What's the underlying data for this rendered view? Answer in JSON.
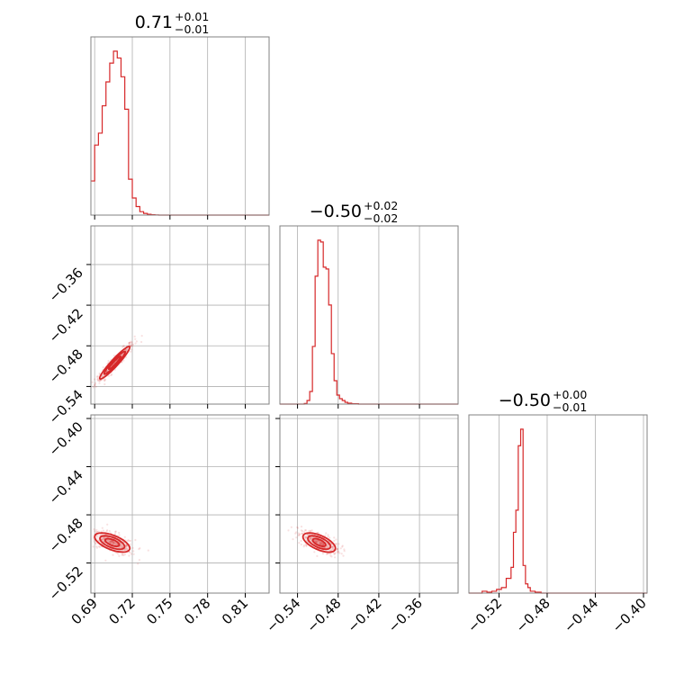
{
  "chart_data": {
    "type": "corner",
    "color": "#d62728",
    "grid": true,
    "diagonal_titles": [
      {
        "value": "0.71",
        "plus": "+0.01",
        "minus": "−0.01"
      },
      {
        "value": "−0.50",
        "plus": "+0.02",
        "minus": "−0.02"
      },
      {
        "value": "−0.50",
        "plus": "+0.00",
        "minus": "−0.01"
      }
    ],
    "params": [
      {
        "range": [
          0.687,
          0.829
        ],
        "xticks": [
          0.69,
          0.72,
          0.75,
          0.78,
          0.81
        ],
        "xtick_labels": [
          "0.69",
          "0.72",
          "0.75",
          "0.78",
          "0.81"
        ],
        "yticks": [],
        "ytick_labels": []
      },
      {
        "range": [
          -0.566,
          -0.303
        ],
        "xticks": [
          -0.54,
          -0.48,
          -0.42,
          -0.36
        ],
        "xtick_labels": [
          "−0.54",
          "−0.48",
          "−0.42",
          "−0.36"
        ],
        "yticks": [
          -0.36,
          -0.42,
          -0.48,
          -0.54
        ],
        "ytick_labels": [
          "−0.36",
          "−0.42",
          "−0.48",
          "−0.54"
        ]
      },
      {
        "range": [
          -0.545,
          -0.397
        ],
        "xticks": [
          -0.52,
          -0.48,
          -0.44,
          -0.4
        ],
        "xtick_labels": [
          "−0.52",
          "−0.48",
          "−0.44",
          "−0.40"
        ],
        "yticks": [
          -0.4,
          -0.44,
          -0.48,
          -0.52
        ],
        "ytick_labels": [
          "−0.40",
          "−0.44",
          "−0.48",
          "−0.52"
        ]
      }
    ],
    "histograms": [
      {
        "bins": [
          0.687,
          0.69,
          0.693,
          0.696,
          0.699,
          0.702,
          0.705,
          0.708,
          0.711,
          0.714,
          0.717,
          0.72,
          0.723,
          0.726,
          0.729,
          0.732,
          0.735,
          0.738,
          0.741,
          0.829
        ],
        "counts": [
          0.2,
          0.41,
          0.48,
          0.64,
          0.78,
          0.89,
          0.96,
          0.92,
          0.81,
          0.62,
          0.21,
          0.1,
          0.05,
          0.02,
          0.01,
          0.005,
          0.002,
          0.001,
          0.0
        ]
      },
      {
        "bins": [
          -0.566,
          -0.53,
          -0.526,
          -0.522,
          -0.518,
          -0.514,
          -0.51,
          -0.506,
          -0.502,
          -0.498,
          -0.494,
          -0.49,
          -0.486,
          -0.482,
          -0.478,
          -0.474,
          -0.47,
          -0.466,
          -0.46,
          -0.45,
          -0.303
        ],
        "counts": [
          0.0,
          0.003,
          0.02,
          0.07,
          0.32,
          0.71,
          0.91,
          0.9,
          0.76,
          0.75,
          0.55,
          0.28,
          0.13,
          0.05,
          0.03,
          0.02,
          0.01,
          0.005,
          0.002,
          0.0
        ]
      },
      {
        "bins": [
          -0.545,
          -0.534,
          -0.53,
          -0.526,
          -0.522,
          -0.518,
          -0.514,
          -0.51,
          -0.508,
          -0.506,
          -0.504,
          -0.502,
          -0.5,
          -0.498,
          -0.496,
          -0.494,
          -0.49,
          -0.485,
          -0.397
        ],
        "counts": [
          0.0,
          0.01,
          0.005,
          0.01,
          0.02,
          0.03,
          0.08,
          0.14,
          0.33,
          0.45,
          0.8,
          0.89,
          0.15,
          0.05,
          0.03,
          0.01,
          0.005,
          0.0
        ]
      }
    ],
    "correlations": [
      {
        "row": 1,
        "col": 0,
        "center": [
          0.706,
          -0.505
        ],
        "sigma": [
          0.006,
          0.012
        ],
        "rho": 0.95
      },
      {
        "row": 2,
        "col": 0,
        "center": [
          0.704,
          -0.503
        ],
        "sigma": [
          0.007,
          0.004
        ],
        "rho": -0.6
      },
      {
        "row": 2,
        "col": 1,
        "center": [
          -0.508,
          -0.503
        ],
        "sigma": [
          0.012,
          0.004
        ],
        "rho": -0.6
      }
    ]
  }
}
